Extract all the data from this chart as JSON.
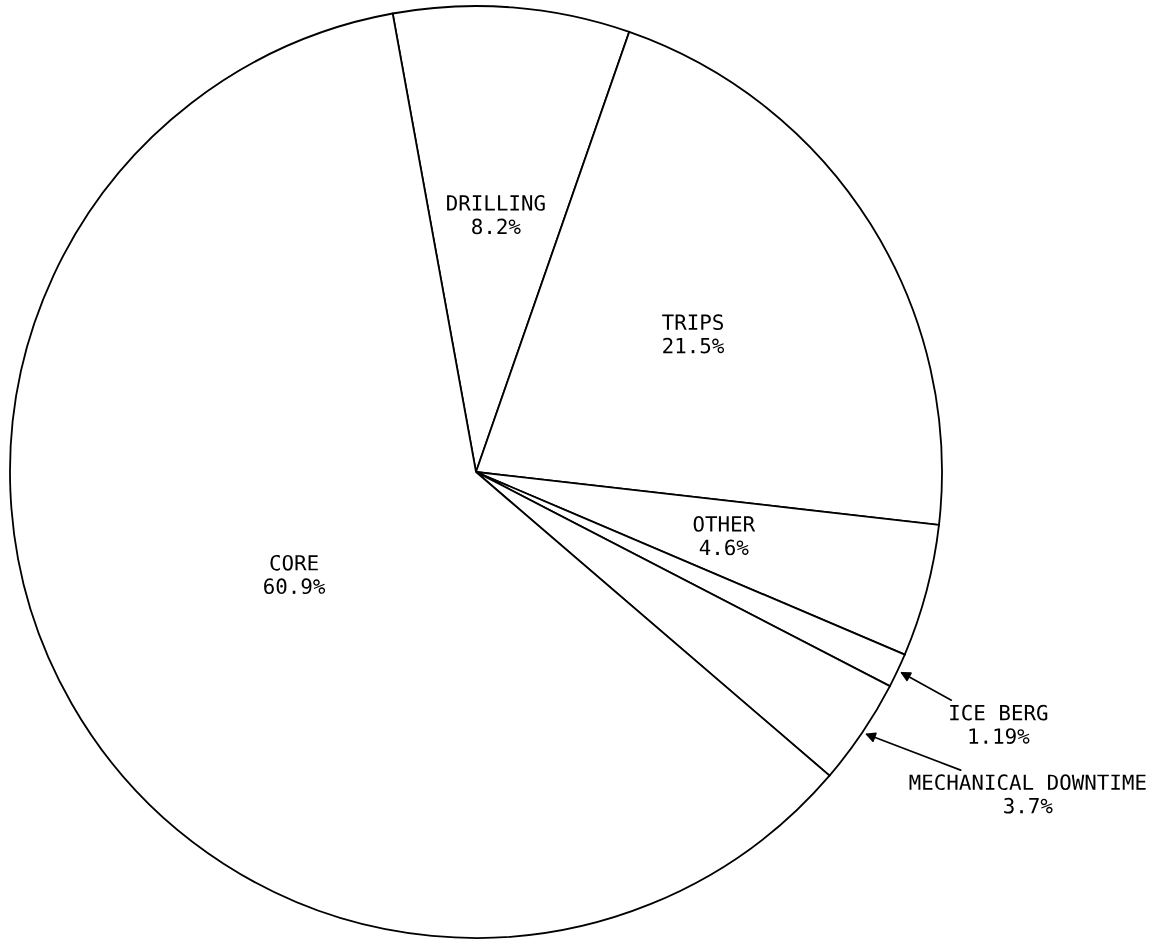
{
  "chart_data": {
    "type": "pie",
    "categories": [
      "DRILLING",
      "TRIPS",
      "OTHER",
      "ICE BERG",
      "MECHANICAL DOWNTIME",
      "CORE"
    ],
    "values": [
      8.2,
      21.5,
      4.6,
      1.19,
      3.7,
      60.9
    ],
    "colors": [
      "#ffffff",
      "#ffffff",
      "#ffffff",
      "#ffffff",
      "#ffffff",
      "#ffffff"
    ],
    "value_labels": [
      "8.2%",
      "21.5%",
      "4.6%",
      "1.19%",
      "3.7%",
      "60.9%"
    ]
  }
}
